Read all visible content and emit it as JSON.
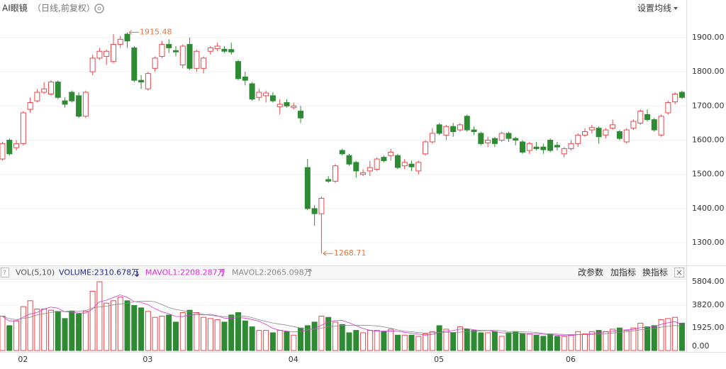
{
  "header": {
    "title": "AI眼镜",
    "subtitle": "（日线,前复权）",
    "ma_button": "设置均线"
  },
  "indicator_bar": {
    "buttons": [
      "改参数",
      "加指标",
      "换指标"
    ]
  },
  "chart_data": [
    {
      "type": "candlestick",
      "up_color": "#e8474c",
      "down_color": "#2e8b33",
      "grid": true,
      "ylim": [
        1238,
        1958
      ],
      "yticks": [
        {
          "value": 1300,
          "label": "1300.00"
        },
        {
          "value": 1400,
          "label": "1400.00"
        },
        {
          "value": 1500,
          "label": "1500.00"
        },
        {
          "value": 1600,
          "label": "1600.00"
        },
        {
          "value": 1700,
          "label": "1700.00"
        },
        {
          "value": 1800,
          "label": "1800.00"
        },
        {
          "value": 1900,
          "label": "1900.00"
        }
      ],
      "open": [
        1545,
        1600,
        1578,
        1590,
        1690,
        1715,
        1740,
        1735,
        1770,
        1715,
        1740,
        1730,
        1670,
        1800,
        1840,
        1845,
        1830,
        1880,
        1910,
        1870,
        1775,
        1750,
        1810,
        1845,
        1880,
        1862,
        1820,
        1880,
        1810,
        1810,
        1860,
        1868,
        1866,
        1865,
        1830,
        1785,
        1765,
        1725,
        1730,
        1730,
        1698,
        1710,
        1695,
        1685,
        1520,
        1400,
        1385,
        1485,
        1480,
        1570,
        1555,
        1535,
        1500,
        1510,
        1515,
        1550,
        1555,
        1555,
        1525,
        1530,
        1510,
        1560,
        1595,
        1645,
        1615,
        1640,
        1630,
        1670,
        1630,
        1620,
        1592,
        1605,
        1600,
        1620,
        1605,
        1595,
        1570,
        1580,
        1580,
        1600,
        1585,
        1560,
        1575,
        1590,
        1615,
        1630,
        1635,
        1615,
        1635,
        1625,
        1595,
        1635,
        1650,
        1675,
        1660,
        1615,
        1680,
        1712,
        1740
      ],
      "high": [
        1595,
        1605,
        1600,
        1685,
        1725,
        1750,
        1770,
        1775,
        1775,
        1725,
        1745,
        1740,
        1745,
        1850,
        1870,
        1865,
        1910,
        1905,
        1915.48,
        1875,
        1790,
        1800,
        1845,
        1890,
        1895,
        1875,
        1880,
        1900,
        1865,
        1845,
        1875,
        1885,
        1875,
        1885,
        1835,
        1800,
        1770,
        1750,
        1745,
        1740,
        1720,
        1720,
        1710,
        1700,
        1545,
        1410,
        1435,
        1495,
        1530,
        1575,
        1560,
        1540,
        1515,
        1540,
        1550,
        1555,
        1575,
        1560,
        1545,
        1540,
        1540,
        1600,
        1635,
        1650,
        1645,
        1650,
        1650,
        1675,
        1640,
        1625,
        1610,
        1610,
        1625,
        1625,
        1610,
        1600,
        1595,
        1595,
        1590,
        1605,
        1595,
        1580,
        1600,
        1620,
        1635,
        1645,
        1640,
        1635,
        1660,
        1630,
        1635,
        1660,
        1690,
        1690,
        1665,
        1675,
        1715,
        1740,
        1745
      ],
      "low": [
        1540,
        1555,
        1570,
        1585,
        1680,
        1710,
        1735,
        1730,
        1720,
        1695,
        1710,
        1665,
        1665,
        1790,
        1835,
        1820,
        1825,
        1870,
        1870,
        1770,
        1750,
        1745,
        1800,
        1840,
        1855,
        1845,
        1810,
        1805,
        1800,
        1795,
        1850,
        1860,
        1855,
        1850,
        1775,
        1760,
        1715,
        1715,
        1710,
        1710,
        1675,
        1695,
        1690,
        1650,
        1395,
        1350,
        1268.71,
        1475,
        1475,
        1555,
        1525,
        1490,
        1495,
        1495,
        1510,
        1535,
        1540,
        1515,
        1515,
        1510,
        1500,
        1555,
        1590,
        1615,
        1600,
        1610,
        1625,
        1625,
        1615,
        1585,
        1580,
        1580,
        1595,
        1595,
        1585,
        1560,
        1560,
        1570,
        1560,
        1565,
        1570,
        1550,
        1570,
        1580,
        1610,
        1620,
        1590,
        1605,
        1630,
        1600,
        1590,
        1630,
        1645,
        1655,
        1625,
        1610,
        1675,
        1705,
        1720
      ],
      "close": [
        1590,
        1560,
        1590,
        1680,
        1710,
        1740,
        1750,
        1770,
        1725,
        1705,
        1715,
        1670,
        1740,
        1840,
        1860,
        1860,
        1880,
        1895,
        1890,
        1775,
        1770,
        1795,
        1840,
        1880,
        1870,
        1858,
        1875,
        1810,
        1860,
        1840,
        1870,
        1875,
        1860,
        1858,
        1780,
        1775,
        1720,
        1740,
        1738,
        1715,
        1705,
        1700,
        1700,
        1665,
        1400,
        1385,
        1430,
        1480,
        1525,
        1560,
        1530,
        1510,
        1505,
        1520,
        1545,
        1540,
        1565,
        1520,
        1535,
        1522,
        1535,
        1595,
        1620,
        1620,
        1640,
        1625,
        1645,
        1630,
        1625,
        1590,
        1600,
        1590,
        1620,
        1605,
        1600,
        1565,
        1590,
        1575,
        1572,
        1570,
        1580,
        1575,
        1590,
        1615,
        1625,
        1637,
        1610,
        1630,
        1645,
        1605,
        1630,
        1655,
        1685,
        1660,
        1630,
        1670,
        1710,
        1735,
        1725
      ]
    },
    {
      "type": "bar",
      "title": "VOL(5,10)",
      "grid": true,
      "categories": [
        null,
        null,
        null,
        "02",
        null,
        null,
        null,
        null,
        null,
        null,
        null,
        null,
        null,
        null,
        null,
        null,
        null,
        null,
        null,
        null,
        null,
        "03",
        null,
        null,
        null,
        null,
        null,
        null,
        null,
        null,
        null,
        null,
        null,
        null,
        null,
        null,
        null,
        null,
        null,
        null,
        null,
        null,
        "04",
        null,
        null,
        null,
        null,
        null,
        null,
        null,
        null,
        null,
        null,
        null,
        null,
        null,
        null,
        null,
        null,
        null,
        null,
        null,
        null,
        "05",
        null,
        null,
        null,
        null,
        null,
        null,
        null,
        null,
        null,
        null,
        null,
        null,
        null,
        null,
        null,
        null,
        null,
        null,
        "06",
        null,
        null,
        null,
        null,
        null,
        null,
        null,
        null,
        null,
        null,
        null,
        null,
        null,
        null,
        null,
        null
      ],
      "ylim": [
        0,
        5804
      ],
      "yticks": [
        {
          "value": 0,
          "label": "0.00"
        },
        {
          "value": 1925,
          "label": "1925.00"
        },
        {
          "value": 3820,
          "label": "3820.00"
        },
        {
          "value": 5804,
          "label": "5804.00"
        }
      ],
      "series": [
        {
          "name": "VOLUME:2310.678万",
          "color": "#1f2a88",
          "values": [
            2900,
            2100,
            2500,
            3700,
            4200,
            3500,
            3500,
            3400,
            3300,
            2700,
            3300,
            3100,
            3300,
            5000,
            5800,
            4000,
            4200,
            4500,
            4200,
            3800,
            3600,
            3300,
            2800,
            2900,
            3000,
            2400,
            3200,
            3400,
            3200,
            2800,
            2700,
            2600,
            2400,
            3000,
            3200,
            2500,
            2000,
            1700,
            1700,
            1500,
            1700,
            1600,
            1300,
            1900,
            2100,
            2400,
            2900,
            2800,
            2400,
            2200,
            1500,
            1700,
            1500,
            1700,
            1700,
            1600,
            1800,
            1300,
            1300,
            1300,
            1200,
            1400,
            1600,
            2100,
            1800,
            1500,
            2000,
            1800,
            1700,
            1500,
            1500,
            1600,
            1200,
            1500,
            1600,
            1400,
            1400,
            1300,
            1200,
            1400,
            1200,
            1200,
            1300,
            1600,
            1400,
            1600,
            1700,
            1600,
            1800,
            1900,
            1700,
            1900,
            2300,
            2000,
            2100,
            2600,
            2700,
            2800,
            2310.678
          ]
        },
        {
          "name": "MAVOL1:2208.287万",
          "color": "#d535d5",
          "type": "line",
          "values": [
            2900,
            2500,
            2500,
            2800,
            3080,
            3200,
            3480,
            3660,
            3580,
            3280,
            3240,
            3160,
            3160,
            3480,
            4100,
            4240,
            4460,
            4700,
            4500,
            4140,
            4060,
            3880,
            3540,
            3280,
            3120,
            2880,
            2860,
            2980,
            3040,
            3000,
            3060,
            2940,
            2740,
            2700,
            2780,
            2740,
            2620,
            2480,
            2220,
            1880,
            1720,
            1640,
            1560,
            1600,
            1720,
            1860,
            2120,
            2420,
            2520,
            2540,
            2360,
            2120,
            1860,
            1720,
            1620,
            1640,
            1660,
            1620,
            1540,
            1460,
            1380,
            1300,
            1360,
            1520,
            1620,
            1680,
            1800,
            1840,
            1760,
            1700,
            1700,
            1620,
            1500,
            1460,
            1480,
            1460,
            1420,
            1440,
            1380,
            1340,
            1300,
            1260,
            1260,
            1340,
            1340,
            1420,
            1520,
            1580,
            1620,
            1720,
            1740,
            1780,
            1920,
            1960,
            2000,
            2200,
            2340,
            2440,
            2208.287
          ]
        },
        {
          "name": "MAVOL2:2065.098万",
          "color": "#8a8a8a",
          "type": "line",
          "values": [
            2900,
            2700,
            2600,
            2700,
            2800,
            3000,
            3100,
            3200,
            3300,
            3280,
            3360,
            3320,
            3370,
            3570,
            3690,
            3740,
            3850,
            3930,
            3980,
            4120,
            4150,
            4170,
            4120,
            3890,
            3630,
            3470,
            3370,
            3260,
            3160,
            3060,
            2970,
            2900,
            2860,
            2870,
            2890,
            2900,
            2780,
            2610,
            2460,
            2330,
            2230,
            2140,
            2020,
            1910,
            1800,
            1790,
            1880,
            2010,
            2060,
            2130,
            2110,
            2110,
            2130,
            2120,
            2080,
            2000,
            1890,
            1740,
            1630,
            1590,
            1510,
            1480,
            1510,
            1530,
            1540,
            1530,
            1550,
            1600,
            1640,
            1660,
            1690,
            1730,
            1670,
            1610,
            1590,
            1580,
            1560,
            1530,
            1440,
            1400,
            1390,
            1360,
            1350,
            1360,
            1340,
            1340,
            1390,
            1420,
            1480,
            1530,
            1580,
            1650,
            1750,
            1790,
            1860,
            1970,
            2040,
            2110,
            2065.098
          ]
        }
      ]
    }
  ]
}
